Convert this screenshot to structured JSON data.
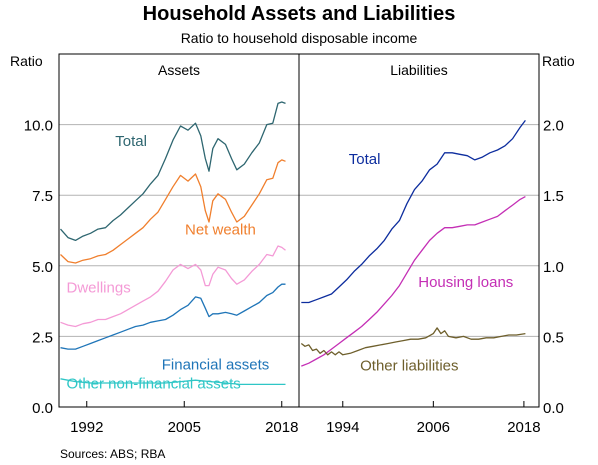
{
  "chart_data": {
    "type": "line",
    "title": "Household Assets and Liabilities",
    "subtitle": "Ratio to household disposable income",
    "source": "Sources:   ABS; RBA",
    "panels": [
      {
        "title": "Assets",
        "axis_label": "Ratio",
        "axis_side": "left",
        "xlim": [
          1988.3,
          2020.3
        ],
        "ylim": [
          0,
          12.5
        ],
        "x_ticks": [
          1992,
          2005,
          2018
        ],
        "x_tick_labels": [
          "1992",
          "2005",
          "2018"
        ],
        "y_ticks": [
          0,
          2.5,
          5,
          7.5,
          10
        ],
        "y_tick_labels": [
          "0.0",
          "2.5",
          "5.0",
          "7.5",
          "10.0"
        ],
        "series": [
          {
            "name": "Total",
            "color": "#2e6670",
            "label_at": [
              1995.8,
              9.25
            ],
            "x": [
              1988.5,
              1989.5,
              1990.5,
              1991.5,
              1992.5,
              1993.5,
              1994.5,
              1995.5,
              1996.5,
              1997.5,
              1998.5,
              1999.5,
              2000.5,
              2001.5,
              2002.5,
              2003.5,
              2004.5,
              2005.5,
              2006.5,
              2007.2,
              2007.8,
              2008.3,
              2008.8,
              2009.5,
              2010.5,
              2011.3,
              2012.0,
              2013.0,
              2014.0,
              2015.0,
              2016.0,
              2016.8,
              2017.5,
              2018.0,
              2018.5
            ],
            "y": [
              6.3,
              6.0,
              5.9,
              6.05,
              6.15,
              6.3,
              6.35,
              6.6,
              6.8,
              7.05,
              7.3,
              7.55,
              7.9,
              8.2,
              8.8,
              9.45,
              9.95,
              9.8,
              10.05,
              9.6,
              8.8,
              8.35,
              9.15,
              9.5,
              9.3,
              8.8,
              8.4,
              8.6,
              9.0,
              9.35,
              10.0,
              10.05,
              10.75,
              10.8,
              10.75
            ]
          },
          {
            "name": "Net wealth",
            "color": "#f07f2d",
            "label_at": [
              2005.1,
              6.1
            ],
            "x": [
              1988.5,
              1989.5,
              1990.5,
              1991.5,
              1992.5,
              1993.5,
              1994.5,
              1995.5,
              1996.5,
              1997.5,
              1998.5,
              1999.5,
              2000.5,
              2001.5,
              2002.5,
              2003.5,
              2004.5,
              2005.5,
              2006.5,
              2007.2,
              2007.8,
              2008.3,
              2008.8,
              2009.5,
              2010.5,
              2011.3,
              2012.0,
              2013.0,
              2014.0,
              2015.0,
              2016.0,
              2016.8,
              2017.5,
              2018.0,
              2018.5
            ],
            "y": [
              5.4,
              5.15,
              5.1,
              5.2,
              5.25,
              5.35,
              5.4,
              5.55,
              5.75,
              5.95,
              6.15,
              6.35,
              6.65,
              6.9,
              7.35,
              7.8,
              8.2,
              8.0,
              8.25,
              7.8,
              6.95,
              6.55,
              7.3,
              7.55,
              7.35,
              6.9,
              6.55,
              6.75,
              7.15,
              7.55,
              8.05,
              8.1,
              8.65,
              8.75,
              8.7
            ]
          },
          {
            "name": "Dwellings",
            "color": "#f49ad6",
            "label_at": [
              1989.3,
              4.05
            ],
            "x": [
              1988.5,
              1989.5,
              1990.5,
              1991.5,
              1992.5,
              1993.5,
              1994.5,
              1995.5,
              1996.5,
              1997.5,
              1998.5,
              1999.5,
              2000.5,
              2001.5,
              2002.5,
              2003.5,
              2004.5,
              2005.5,
              2006.5,
              2007.2,
              2007.8,
              2008.3,
              2008.8,
              2009.5,
              2010.5,
              2011.3,
              2012.0,
              2013.0,
              2014.0,
              2015.0,
              2016.0,
              2016.8,
              2017.5,
              2018.0,
              2018.5
            ],
            "y": [
              3.0,
              2.9,
              2.85,
              2.95,
              3.0,
              3.1,
              3.1,
              3.2,
              3.3,
              3.45,
              3.6,
              3.75,
              3.9,
              4.1,
              4.45,
              4.85,
              5.05,
              4.9,
              5.05,
              4.85,
              4.3,
              4.3,
              4.7,
              4.95,
              4.85,
              4.55,
              4.35,
              4.5,
              4.8,
              5.05,
              5.4,
              5.35,
              5.7,
              5.65,
              5.55
            ]
          },
          {
            "name": "Financial assets",
            "color": "#1f75b8",
            "label_at": [
              2002.0,
              1.33
            ],
            "x": [
              1988.5,
              1989.5,
              1990.5,
              1991.5,
              1992.5,
              1993.5,
              1994.5,
              1995.5,
              1996.5,
              1997.5,
              1998.5,
              1999.5,
              2000.5,
              2001.5,
              2002.5,
              2003.5,
              2004.5,
              2005.5,
              2006.5,
              2007.2,
              2007.8,
              2008.3,
              2008.8,
              2009.5,
              2010.5,
              2011.3,
              2012.0,
              2013.0,
              2014.0,
              2015.0,
              2016.0,
              2016.8,
              2017.5,
              2018.0,
              2018.5
            ],
            "y": [
              2.1,
              2.05,
              2.05,
              2.15,
              2.25,
              2.35,
              2.45,
              2.55,
              2.65,
              2.75,
              2.85,
              2.9,
              3.0,
              3.05,
              3.1,
              3.25,
              3.45,
              3.6,
              3.9,
              3.85,
              3.5,
              3.2,
              3.3,
              3.3,
              3.35,
              3.3,
              3.25,
              3.4,
              3.55,
              3.7,
              3.95,
              4.05,
              4.25,
              4.35,
              4.35
            ]
          },
          {
            "name": "Other non-financial assets",
            "color": "#2ec6c6",
            "label_at": [
              1989.3,
              0.65
            ],
            "x": [
              1988.5,
              1990.5,
              1992.5,
              1994.5,
              1996.5,
              1998.5,
              2000.5,
              2002.5,
              2004.5,
              2006.5,
              2008.5,
              2010.5,
              2012.5,
              2014.5,
              2016.5,
              2018.5
            ],
            "y": [
              1.0,
              0.9,
              0.85,
              0.85,
              0.85,
              0.85,
              0.85,
              0.85,
              0.9,
              0.95,
              0.9,
              0.85,
              0.8,
              0.8,
              0.8,
              0.8
            ]
          }
        ]
      },
      {
        "title": "Liabilities",
        "axis_label": "Ratio",
        "axis_side": "right",
        "xlim": [
          1988.2,
          2020.0
        ],
        "ylim": [
          0,
          2.5
        ],
        "x_ticks": [
          1994,
          2006,
          2018
        ],
        "x_tick_labels": [
          "1994",
          "2006",
          "2018"
        ],
        "y_ticks": [
          0,
          0.5,
          1,
          1.5,
          2
        ],
        "y_tick_labels": [
          "0.0",
          "0.5",
          "1.0",
          "1.5",
          "2.0"
        ],
        "series": [
          {
            "name": "Total",
            "color": "#0d2d9e",
            "label_at": [
              1994.8,
              1.72
            ],
            "x": [
              1988.5,
              1989.5,
              1990.5,
              1991.5,
              1992.5,
              1993.5,
              1994.5,
              1995.5,
              1996.5,
              1997.5,
              1998.5,
              1999.5,
              2000.5,
              2001.5,
              2002.5,
              2003.5,
              2004.5,
              2005.5,
              2006.5,
              2007.5,
              2008.5,
              2009.5,
              2010.5,
              2011.5,
              2012.5,
              2013.5,
              2014.5,
              2015.5,
              2016.5,
              2017.5,
              2018.2
            ],
            "y": [
              0.74,
              0.74,
              0.76,
              0.78,
              0.8,
              0.85,
              0.9,
              0.96,
              1.01,
              1.07,
              1.12,
              1.18,
              1.26,
              1.32,
              1.44,
              1.54,
              1.6,
              1.68,
              1.72,
              1.8,
              1.8,
              1.79,
              1.78,
              1.75,
              1.77,
              1.8,
              1.82,
              1.85,
              1.9,
              1.98,
              2.03
            ]
          },
          {
            "name": "Housing loans",
            "color": "#c42fb5",
            "label_at": [
              2004.0,
              0.85
            ],
            "x": [
              1988.5,
              1989.5,
              1990.5,
              1991.5,
              1992.5,
              1993.5,
              1994.5,
              1995.5,
              1996.5,
              1997.5,
              1998.5,
              1999.5,
              2000.5,
              2001.5,
              2002.5,
              2003.5,
              2004.5,
              2005.5,
              2006.5,
              2007.5,
              2008.5,
              2009.5,
              2010.5,
              2011.5,
              2012.5,
              2013.5,
              2014.5,
              2015.5,
              2016.5,
              2017.5,
              2018.2
            ],
            "y": [
              0.29,
              0.31,
              0.34,
              0.37,
              0.41,
              0.45,
              0.49,
              0.53,
              0.57,
              0.62,
              0.67,
              0.73,
              0.79,
              0.86,
              0.95,
              1.04,
              1.11,
              1.18,
              1.23,
              1.27,
              1.27,
              1.28,
              1.29,
              1.29,
              1.31,
              1.33,
              1.35,
              1.39,
              1.43,
              1.47,
              1.49
            ]
          },
          {
            "name": "Other liabilities",
            "color": "#6e5f2c",
            "label_at": [
              1996.3,
              0.26
            ],
            "x": [
              1988.5,
              1989.0,
              1989.5,
              1990.0,
              1990.5,
              1991.0,
              1991.5,
              1992.0,
              1992.5,
              1993.0,
              1993.5,
              1994.0,
              1995.0,
              1996.0,
              1997.0,
              1998.0,
              1999.0,
              2000.0,
              2001.0,
              2002.0,
              2003.0,
              2004.0,
              2005.0,
              2006.0,
              2006.5,
              2007.0,
              2007.5,
              2008.0,
              2009.0,
              2010.0,
              2011.0,
              2012.0,
              2013.0,
              2014.0,
              2015.0,
              2016.0,
              2017.0,
              2018.2
            ],
            "y": [
              0.45,
              0.43,
              0.44,
              0.4,
              0.41,
              0.38,
              0.4,
              0.37,
              0.39,
              0.37,
              0.39,
              0.37,
              0.38,
              0.4,
              0.42,
              0.43,
              0.44,
              0.45,
              0.46,
              0.47,
              0.48,
              0.48,
              0.49,
              0.52,
              0.56,
              0.52,
              0.54,
              0.5,
              0.49,
              0.5,
              0.48,
              0.48,
              0.49,
              0.49,
              0.5,
              0.51,
              0.51,
              0.52
            ]
          }
        ]
      }
    ]
  }
}
